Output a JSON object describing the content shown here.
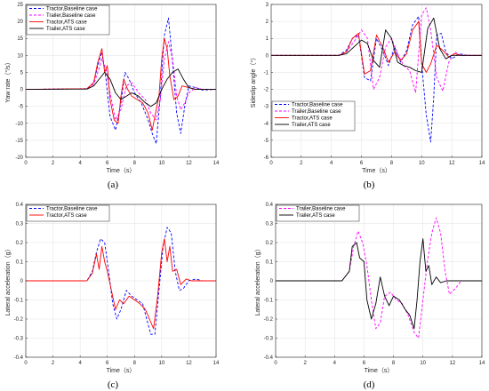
{
  "chart_data": [
    {
      "type": "line",
      "panel_label": "(a)",
      "xlabel": "Time（s）",
      "ylabel": "Yaw rate（°/s）",
      "xlim": [
        0,
        14
      ],
      "ylim": [
        -20,
        25
      ],
      "xticks": [
        0,
        2,
        4,
        6,
        8,
        10,
        12,
        14
      ],
      "yticks": [
        -20,
        -15,
        -10,
        -5,
        0,
        5,
        10,
        15,
        20,
        25
      ],
      "grid": true,
      "legend_position": "top-left",
      "series": [
        {
          "name": "Tractor,Baseline case",
          "color": "#0000ff",
          "dash": "dashed",
          "x": [
            0,
            4.5,
            5.0,
            5.3,
            5.6,
            5.9,
            6.2,
            6.6,
            7.0,
            7.3,
            7.6,
            8.0,
            8.5,
            9.0,
            9.3,
            9.6,
            9.9,
            10.2,
            10.5,
            10.8,
            11.1,
            11.4,
            11.7,
            12.0,
            12.5,
            13.0,
            14
          ],
          "y": [
            0,
            0.2,
            2,
            7,
            11,
            3,
            -8,
            -12,
            -4,
            5,
            3,
            -1,
            -4,
            -9,
            -13,
            -16,
            -2,
            16,
            21,
            8,
            -7,
            -13,
            -5,
            1,
            0.5,
            -0.2,
            0
          ]
        },
        {
          "name": "Trailer,Baseline case",
          "color": "#ff00ff",
          "dash": "dashed",
          "x": [
            0,
            4.5,
            5.0,
            5.3,
            5.6,
            5.9,
            6.2,
            6.6,
            7.0,
            7.4,
            7.8,
            8.3,
            8.8,
            9.2,
            9.6,
            9.9,
            10.2,
            10.5,
            10.8,
            11.1,
            11.4,
            11.7,
            12.0,
            12.5,
            13.0,
            14
          ],
          "y": [
            0,
            0.2,
            1.5,
            5,
            9,
            6,
            -1,
            -9,
            -6,
            1,
            2,
            -1,
            -3,
            -7,
            -9,
            -3,
            9,
            14,
            9,
            -2,
            -6,
            -4,
            -1,
            0.5,
            0,
            0
          ]
        },
        {
          "name": "Tractor,ATS case",
          "color": "#ff0000",
          "dash": "solid",
          "x": [
            0,
            4.5,
            5.0,
            5.3,
            5.6,
            5.8,
            6.0,
            6.2,
            6.5,
            6.8,
            7.0,
            7.2,
            7.5,
            7.8,
            8.2,
            8.6,
            9.0,
            9.3,
            9.6,
            9.8,
            10.0,
            10.2,
            10.4,
            10.6,
            10.9,
            11.2,
            11.5,
            12.0,
            12.5,
            13.0,
            14
          ],
          "y": [
            0,
            0.2,
            2,
            8,
            12,
            5,
            7,
            -3,
            -9,
            -10,
            -2,
            3,
            0,
            -2,
            -3,
            -4,
            -7,
            -12,
            -6,
            -2,
            9,
            15,
            12,
            4,
            -3,
            -2,
            1,
            0.5,
            0,
            0,
            0
          ]
        },
        {
          "name": "Trailer,ATS case",
          "color": "#000000",
          "dash": "solid",
          "x": [
            0,
            4.5,
            5.0,
            5.4,
            5.8,
            6.2,
            6.6,
            7.0,
            7.4,
            7.8,
            8.3,
            8.8,
            9.2,
            9.6,
            10.0,
            10.4,
            10.8,
            11.2,
            11.6,
            12.0,
            12.5,
            13.0,
            14
          ],
          "y": [
            0,
            0.1,
            1,
            3,
            5,
            3,
            -1,
            -3,
            -2,
            -1,
            -2,
            -4,
            -5,
            -4,
            0,
            3,
            5,
            6,
            3,
            0.5,
            0,
            0,
            0
          ]
        }
      ]
    },
    {
      "type": "line",
      "panel_label": "(b)",
      "xlabel": "Time（s）",
      "ylabel": "Sideslip angle（°）",
      "xlim": [
        0,
        14
      ],
      "ylim": [
        -6,
        3
      ],
      "xticks": [
        0,
        2,
        4,
        6,
        8,
        10,
        12,
        14
      ],
      "yticks": [
        -6,
        -5,
        -4,
        -3,
        -2,
        -1,
        0,
        1,
        2,
        3
      ],
      "grid": true,
      "legend_position": "bottom-left",
      "series": [
        {
          "name": "Tractor,Baseline case",
          "color": "#0000ff",
          "dash": "dashed",
          "x": [
            0,
            4.5,
            5.0,
            5.4,
            5.8,
            6.2,
            6.6,
            7.0,
            7.4,
            7.8,
            8.2,
            8.6,
            9.0,
            9.4,
            9.8,
            10.0,
            10.3,
            10.6,
            10.8,
            11.0,
            11.3,
            11.6,
            12.0,
            12.5,
            13.0,
            14
          ],
          "y": [
            0,
            0,
            0.3,
            1.0,
            1.2,
            -1.3,
            -1.5,
            1.0,
            0.3,
            -0.6,
            0.5,
            -0.4,
            0.3,
            1.8,
            2.3,
            -0.5,
            -3.5,
            -5.1,
            -2.5,
            1.2,
            1.3,
            0.2,
            -0.2,
            0.1,
            0,
            0
          ]
        },
        {
          "name": "Trailer,Baseline case",
          "color": "#ff00ff",
          "dash": "dashed",
          "x": [
            0,
            4.5,
            5.0,
            5.5,
            6.0,
            6.4,
            6.8,
            7.2,
            7.6,
            8.0,
            8.4,
            8.8,
            9.2,
            9.6,
            10.0,
            10.3,
            10.6,
            11.0,
            11.4,
            11.8,
            12.2,
            12.6,
            13.0,
            14
          ],
          "y": [
            0,
            0,
            0.2,
            0.8,
            1.5,
            1.0,
            -2.0,
            -1.3,
            0.5,
            1.0,
            0.1,
            -0.6,
            -0.9,
            -2.2,
            2.4,
            2.8,
            1.5,
            -1.3,
            -2.1,
            -0.4,
            0.2,
            0,
            0,
            0
          ]
        },
        {
          "name": "Tractor,ATS case",
          "color": "#ff0000",
          "dash": "solid",
          "x": [
            0,
            4.5,
            5.0,
            5.4,
            5.8,
            6.2,
            6.6,
            7.0,
            7.4,
            7.8,
            8.2,
            8.6,
            9.0,
            9.4,
            9.8,
            10.0,
            10.3,
            10.6,
            11.0,
            11.4,
            11.8,
            12.2,
            12.6,
            13.0,
            14
          ],
          "y": [
            0,
            0,
            0.2,
            1.0,
            1.3,
            -1.1,
            -0.9,
            1.2,
            0.5,
            -0.4,
            0.2,
            -0.3,
            0.1,
            1.5,
            2.0,
            -0.5,
            -1.0,
            -0.5,
            0.6,
            0.3,
            -0.1,
            0.1,
            0,
            0,
            0
          ]
        },
        {
          "name": "Trailer,ATS case",
          "color": "#000000",
          "dash": "solid",
          "x": [
            0,
            4.5,
            5.0,
            5.5,
            6.0,
            6.4,
            6.8,
            7.2,
            7.6,
            8.0,
            8.4,
            8.8,
            9.2,
            9.6,
            10.0,
            10.4,
            10.8,
            11.2,
            11.6,
            12.0,
            12.5,
            13.0,
            14
          ],
          "y": [
            0,
            0,
            0.1,
            0.5,
            0.9,
            0.7,
            -0.3,
            -0.7,
            1.5,
            1.0,
            -0.4,
            -0.6,
            -0.7,
            -0.9,
            -1.0,
            1.6,
            2.2,
            0.4,
            -0.2,
            0,
            0,
            0,
            0
          ]
        }
      ]
    },
    {
      "type": "line",
      "panel_label": "(c)",
      "xlabel": "Time（s）",
      "ylabel": "Lateral acceleration（g）",
      "xlim": [
        0,
        14
      ],
      "ylim": [
        -0.4,
        0.4
      ],
      "xticks": [
        0,
        2,
        4,
        6,
        8,
        10,
        12,
        14
      ],
      "yticks": [
        -0.4,
        -0.3,
        -0.2,
        -0.1,
        0,
        0.1,
        0.2,
        0.3,
        0.4
      ],
      "grid": true,
      "legend_position": "top-left",
      "series": [
        {
          "name": "Tractor,Baseline case",
          "color": "#0000ff",
          "dash": "dashed",
          "x": [
            0,
            4.5,
            4.9,
            5.2,
            5.5,
            5.8,
            6.1,
            6.4,
            6.7,
            7.0,
            7.4,
            7.8,
            8.2,
            8.6,
            8.9,
            9.2,
            9.5,
            9.8,
            10.1,
            10.4,
            10.7,
            11.0,
            11.3,
            11.6,
            12.0,
            12.5,
            13.0,
            14
          ],
          "y": [
            0,
            0,
            0.05,
            0.15,
            0.22,
            0.2,
            0.05,
            -0.12,
            -0.2,
            -0.15,
            -0.05,
            -0.08,
            -0.1,
            -0.12,
            -0.2,
            -0.28,
            -0.28,
            -0.05,
            0.18,
            0.28,
            0.25,
            0.05,
            -0.05,
            -0.04,
            0,
            0.01,
            0,
            0
          ]
        },
        {
          "name": "Tractor,ATS case",
          "color": "#ff0000",
          "dash": "solid",
          "x": [
            0,
            4.5,
            4.9,
            5.2,
            5.4,
            5.6,
            5.8,
            6.0,
            6.3,
            6.6,
            6.9,
            7.2,
            7.6,
            8.0,
            8.4,
            8.8,
            9.1,
            9.4,
            9.7,
            10.0,
            10.2,
            10.4,
            10.6,
            10.8,
            11.1,
            11.4,
            11.8,
            12.2,
            12.6,
            13.0,
            14
          ],
          "y": [
            0,
            0,
            0.04,
            0.14,
            0.06,
            0.18,
            0.1,
            0.05,
            -0.05,
            -0.15,
            -0.1,
            -0.12,
            -0.08,
            -0.1,
            -0.12,
            -0.15,
            -0.2,
            -0.25,
            -0.08,
            0.15,
            0.22,
            0.1,
            0.18,
            0.05,
            0.06,
            -0.02,
            0.01,
            0,
            0,
            0,
            0
          ]
        }
      ]
    },
    {
      "type": "line",
      "panel_label": "(d)",
      "xlabel": "Time（s）",
      "ylabel": "Lateral acceleration（g）",
      "xlim": [
        0,
        14
      ],
      "ylim": [
        -0.4,
        0.4
      ],
      "xticks": [
        0,
        2,
        4,
        6,
        8,
        10,
        12,
        14
      ],
      "yticks": [
        -0.4,
        -0.3,
        -0.2,
        -0.1,
        0,
        0.1,
        0.2,
        0.3,
        0.4
      ],
      "grid": true,
      "legend_position": "top-left",
      "series": [
        {
          "name": "Trailer,Baseline case",
          "color": "#ff00ff",
          "dash": "dashed",
          "x": [
            0,
            4.5,
            5.0,
            5.3,
            5.6,
            5.9,
            6.2,
            6.5,
            6.8,
            7.1,
            7.4,
            7.8,
            8.2,
            8.6,
            9.0,
            9.4,
            9.7,
            10.0,
            10.3,
            10.6,
            10.9,
            11.2,
            11.5,
            11.8,
            12.2,
            12.6,
            13.0,
            14
          ],
          "y": [
            0,
            0,
            0.05,
            0.18,
            0.26,
            0.2,
            0.08,
            -0.1,
            -0.25,
            -0.22,
            -0.08,
            -0.06,
            -0.1,
            -0.12,
            -0.18,
            -0.27,
            -0.3,
            -0.1,
            0.1,
            0.25,
            0.33,
            0.25,
            0.05,
            -0.07,
            -0.04,
            0,
            0,
            0
          ]
        },
        {
          "name": "Trailer,ATS case",
          "color": "#000000",
          "dash": "solid",
          "x": [
            0,
            4.5,
            5.0,
            5.2,
            5.5,
            5.7,
            6.0,
            6.2,
            6.5,
            6.8,
            7.1,
            7.4,
            7.7,
            8.0,
            8.4,
            8.8,
            9.1,
            9.4,
            9.6,
            9.8,
            10.0,
            10.2,
            10.4,
            10.6,
            10.9,
            11.2,
            11.6,
            12.0,
            12.5,
            13.0,
            14
          ],
          "y": [
            0,
            0,
            0.05,
            0.18,
            0.2,
            0.12,
            0.1,
            -0.1,
            -0.2,
            -0.12,
            0.02,
            -0.08,
            -0.13,
            -0.08,
            -0.1,
            -0.15,
            -0.18,
            -0.25,
            -0.1,
            0.1,
            0.22,
            0.05,
            0.08,
            -0.02,
            0.02,
            -0.01,
            0,
            0,
            0,
            0,
            0
          ]
        }
      ]
    }
  ]
}
